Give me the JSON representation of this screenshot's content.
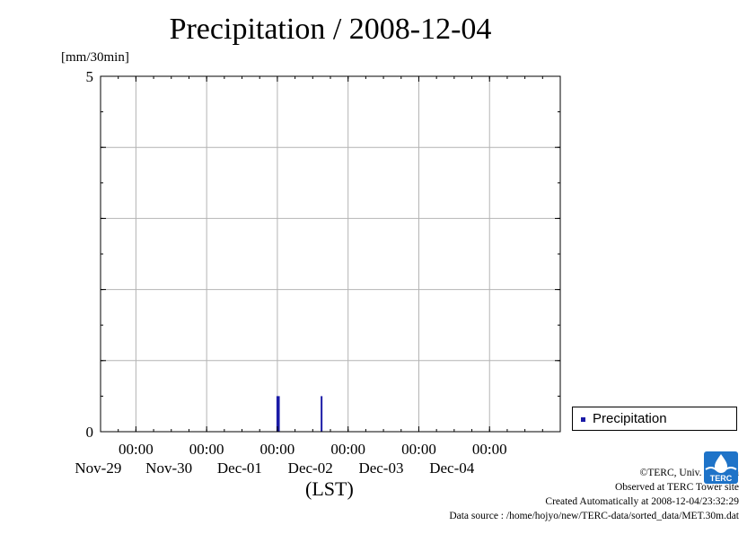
{
  "title": "Precipitation / 2008-12-04",
  "y_unit": "[mm/30min]",
  "x_axis_note": "(LST)",
  "legend": {
    "label": "Precipitation"
  },
  "colors": {
    "series": "#1a1aa6",
    "grid": "#b4b4b4",
    "axis": "#000000"
  },
  "credits": {
    "copyright": "©TERC, Univ. Tsukuba",
    "observed": "Observed at TERC Tower site",
    "created": "Created Automatically at 2008-12-04/23:32:29",
    "source": "Data source : /home/hojyo/new/TERC-data/sorted_data/MET.30m.dat"
  },
  "logo": {
    "icon": "terc-logo-icon",
    "text": "TERC"
  },
  "chart_data": {
    "type": "bar",
    "title": "Precipitation / 2008-12-04",
    "ylabel": "[mm/30min]",
    "xlabel": "(LST)",
    "ylim": [
      0,
      5
    ],
    "y_ticks": [
      0,
      5
    ],
    "y_grid": [
      1,
      2,
      3,
      4
    ],
    "xlim": [
      "2008-11-28T12:00",
      "2008-12-05T00:00"
    ],
    "x_ticks": [
      {
        "time": "2008-11-29T00:00",
        "time_label": "00:00",
        "date_label": "Nov-29"
      },
      {
        "time": "2008-11-30T00:00",
        "time_label": "00:00",
        "date_label": "Nov-30"
      },
      {
        "time": "2008-12-01T00:00",
        "time_label": "00:00",
        "date_label": "Dec-01"
      },
      {
        "time": "2008-12-02T00:00",
        "time_label": "00:00",
        "date_label": "Dec-02"
      },
      {
        "time": "2008-12-03T00:00",
        "time_label": "00:00",
        "date_label": "Dec-03"
      },
      {
        "time": "2008-12-04T00:00",
        "time_label": "00:00",
        "date_label": "Dec-04"
      }
    ],
    "grid": true,
    "legend_position": "bottom-right outside",
    "series": [
      {
        "name": "Precipitation",
        "points": [
          {
            "time": "2008-12-01T00:00",
            "value": 0.5
          },
          {
            "time": "2008-12-01T00:30",
            "value": 0.5
          },
          {
            "time": "2008-12-01T15:00",
            "value": 0.5
          }
        ]
      }
    ]
  }
}
